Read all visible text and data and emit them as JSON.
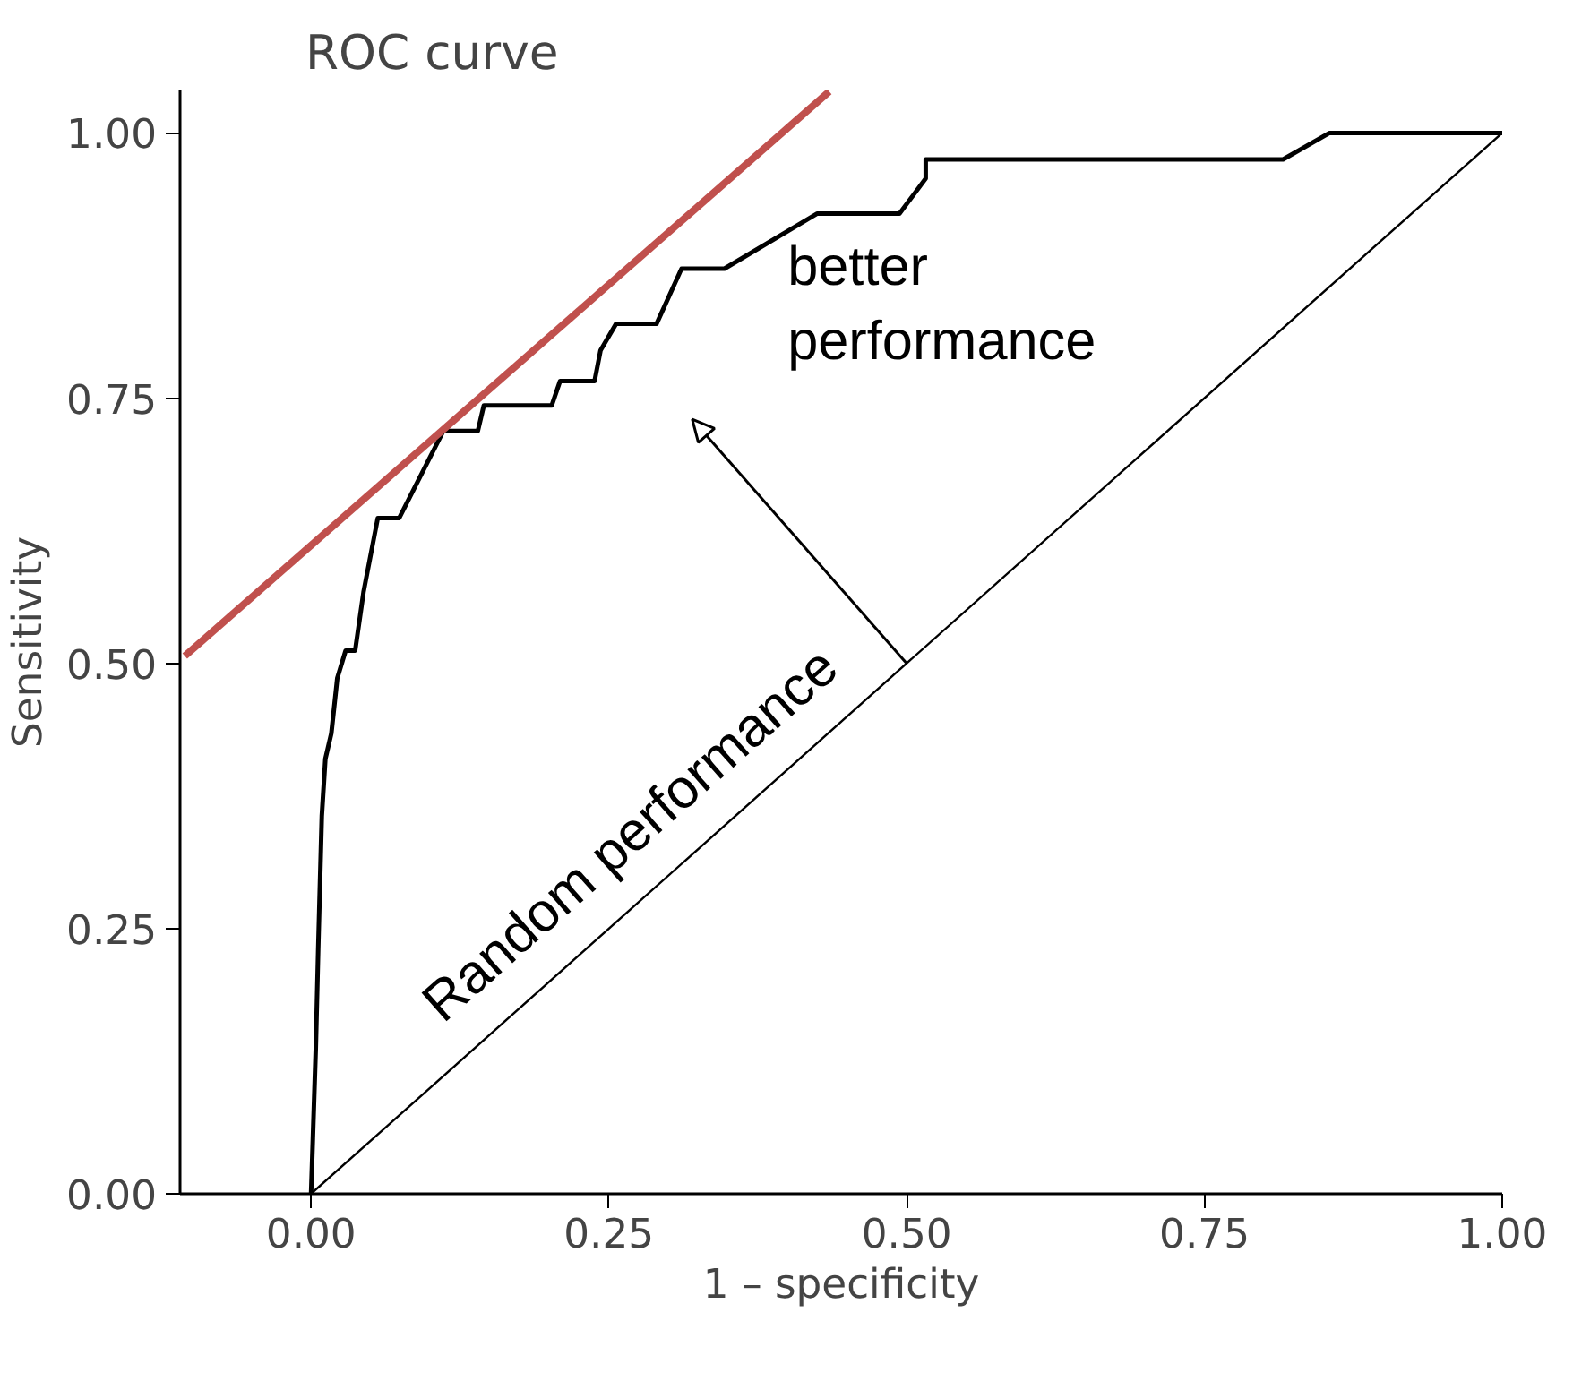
{
  "chart_data": {
    "type": "line",
    "title": "ROC curve",
    "xlabel": "1 – specificity",
    "ylabel": "Sensitivity",
    "xlim": [
      -0.11,
      1.0
    ],
    "ylim": [
      0,
      1.04
    ],
    "xticks": [
      {
        "value": 0,
        "label": "0.00"
      },
      {
        "value": 0.25,
        "label": "0.25"
      },
      {
        "value": 0.5,
        "label": "0.50"
      },
      {
        "value": 0.75,
        "label": "0.75"
      },
      {
        "value": 1,
        "label": "1.00"
      }
    ],
    "yticks": [
      {
        "value": 0,
        "label": "0.00"
      },
      {
        "value": 0.25,
        "label": "0.25"
      },
      {
        "value": 0.5,
        "label": "0.50"
      },
      {
        "value": 0.75,
        "label": "0.75"
      },
      {
        "value": 1,
        "label": "1.00"
      }
    ],
    "marker": "none",
    "line_style": "solid",
    "series": [
      {
        "color": "#000000",
        "x": [
          0,
          0.004,
          0.006,
          0.009,
          0.012,
          0.017,
          0.022,
          0.029,
          0.037,
          0.044,
          0.056,
          0.074,
          0.111,
          0.14,
          0.145,
          0.202,
          0.209,
          0.238,
          0.243,
          0.256,
          0.29,
          0.311,
          0.347,
          0.425,
          0.494,
          0.516,
          0.516,
          0.816,
          0.855,
          1.0
        ],
        "values": [
          0,
          0.139,
          0.231,
          0.356,
          0.41,
          0.434,
          0.486,
          0.512,
          0.512,
          0.567,
          0.637,
          0.637,
          0.719,
          0.719,
          0.743,
          0.743,
          0.766,
          0.766,
          0.795,
          0.82,
          0.82,
          0.872,
          0.872,
          0.924,
          0.924,
          0.957,
          0.975,
          0.975,
          1.0,
          1.0
        ]
      },
      {
        "color": "#000000",
        "x": [
          0,
          1
        ],
        "values": [
          0,
          1
        ]
      },
      {
        "color": "#c0504d",
        "x": [
          -0.106,
          0.435
        ],
        "values": [
          0.507,
          1.039
        ]
      }
    ],
    "annotations": [
      "better performance",
      {
        "text": "Random performance",
        "x": 0.3,
        "y": 0.3
      }
    ]
  }
}
